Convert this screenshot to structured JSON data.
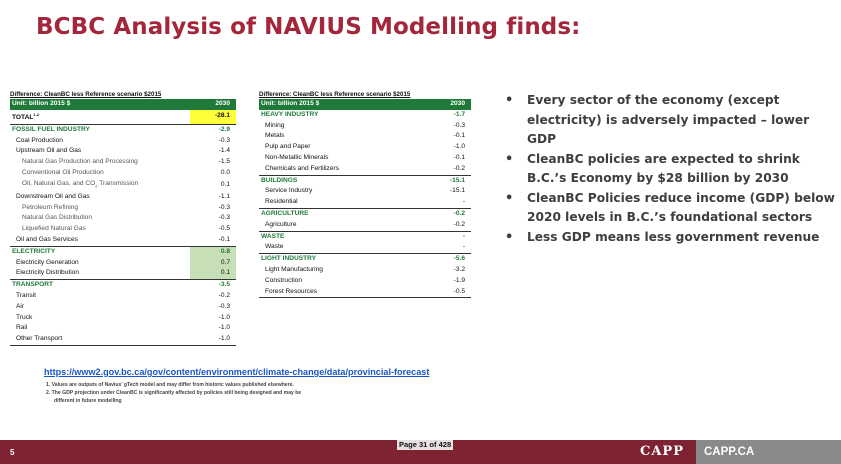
{
  "slide": {
    "title": "BCBC Analysis of NAVIUS Modelling finds:",
    "number": "5",
    "page_of": "Page 31 of 428",
    "logo_text": "CAPP",
    "brand_site": "CAPP.CA"
  },
  "left_table": {
    "caption": "Difference: CleanBC less Reference scenario $2015",
    "header": {
      "unit": "Unit: billion 2015 $",
      "year": "2030"
    },
    "rows": [
      {
        "label": "TOTAL",
        "sup": "1,2",
        "value": "-28.1"
      },
      {
        "label": "FOSSIL FUEL INDUSTRY",
        "value": "-2.9"
      },
      {
        "label": "Coal Production",
        "value": "-0.3"
      },
      {
        "label": "Upstream Oil and Gas",
        "value": "-1.4"
      },
      {
        "label": "Natural Gas Production and Processing",
        "value": "-1.5"
      },
      {
        "label": "Conventional Oil Production",
        "value": "0.0"
      },
      {
        "label": "Oil, Natural Gas, and CO",
        "sub": "2",
        "label_tail": " Transmission",
        "value": "0.1"
      },
      {
        "label": "Downstream Oil and Gas",
        "value": "-1.1"
      },
      {
        "label": "Petroleum Refining",
        "value": "-0.3"
      },
      {
        "label": "Natural Gas Distribution",
        "value": "-0.3"
      },
      {
        "label": "Liquefied Natural Gas",
        "value": "-0.5"
      },
      {
        "label": "Oil and Gas Services",
        "value": "-0.1"
      },
      {
        "label": "ELECTRICITY",
        "value": "0.8"
      },
      {
        "label": "Electricity Generation",
        "value": "0.7"
      },
      {
        "label": "Electricity Distribution",
        "value": "0.1"
      },
      {
        "label": "TRANSPORT",
        "value": "-3.5"
      },
      {
        "label": "Transit",
        "value": "-0.2"
      },
      {
        "label": "Air",
        "value": "-0.3"
      },
      {
        "label": "Truck",
        "value": "-1.0"
      },
      {
        "label": "Rail",
        "value": "-1.0"
      },
      {
        "label": "Other Transport",
        "value": "-1.0"
      }
    ]
  },
  "right_table": {
    "caption": "Difference: CleanBC less Reference scenario $2015",
    "header": {
      "unit": "Unit: billion 2015 $",
      "year": "2030"
    },
    "rows": [
      {
        "label": "HEAVY INDUSTRY",
        "value": "-1.7"
      },
      {
        "label": "Mining",
        "value": "-0.3"
      },
      {
        "label": "Metals",
        "value": "-0.1"
      },
      {
        "label": "Pulp and Paper",
        "value": "-1.0"
      },
      {
        "label": "Non-Metallic Minerals",
        "value": "-0.1"
      },
      {
        "label": "Chemicals and Fertilizers",
        "value": "-0.2"
      },
      {
        "label": "BUILDINGS",
        "value": "-15.1"
      },
      {
        "label": "Service Industry",
        "value": "-15.1"
      },
      {
        "label": "Residential",
        "value": "-"
      },
      {
        "label": "AGRICULTURE",
        "value": "-0.2"
      },
      {
        "label": "Agriculture",
        "value": "-0.2"
      },
      {
        "label": "WASTE",
        "value": "-"
      },
      {
        "label": "Waste",
        "value": "-"
      },
      {
        "label": "LIGHT INDUSTRY",
        "value": "-5.6"
      },
      {
        "label": "Light Manufacturing",
        "value": "-3.2"
      },
      {
        "label": "Construction",
        "value": "-1.9"
      },
      {
        "label": "Forest Resources",
        "value": "-0.5"
      }
    ]
  },
  "bullets": [
    "Every sector of the economy (except electricity) is adversely impacted – lower GDP",
    "CleanBC policies are expected to shrink B.C.’s Economy by $28 billion by 2030",
    "CleanBC Policies reduce income (GDP) below 2020 levels in B.C.’s foundational sectors",
    "Less GDP means less government revenue"
  ],
  "source_link": "https://www2.gov.bc.ca/gov/content/environment/climate-change/data/provincial-forecast",
  "notes": [
    "1.  Values are outputs of Navius’ gTech model and may differ from historic values published elsewhere.",
    "2.  The GDP projection under CleanBC is significantly affected by policies still being designed and may be",
    "different in future modelling"
  ]
}
